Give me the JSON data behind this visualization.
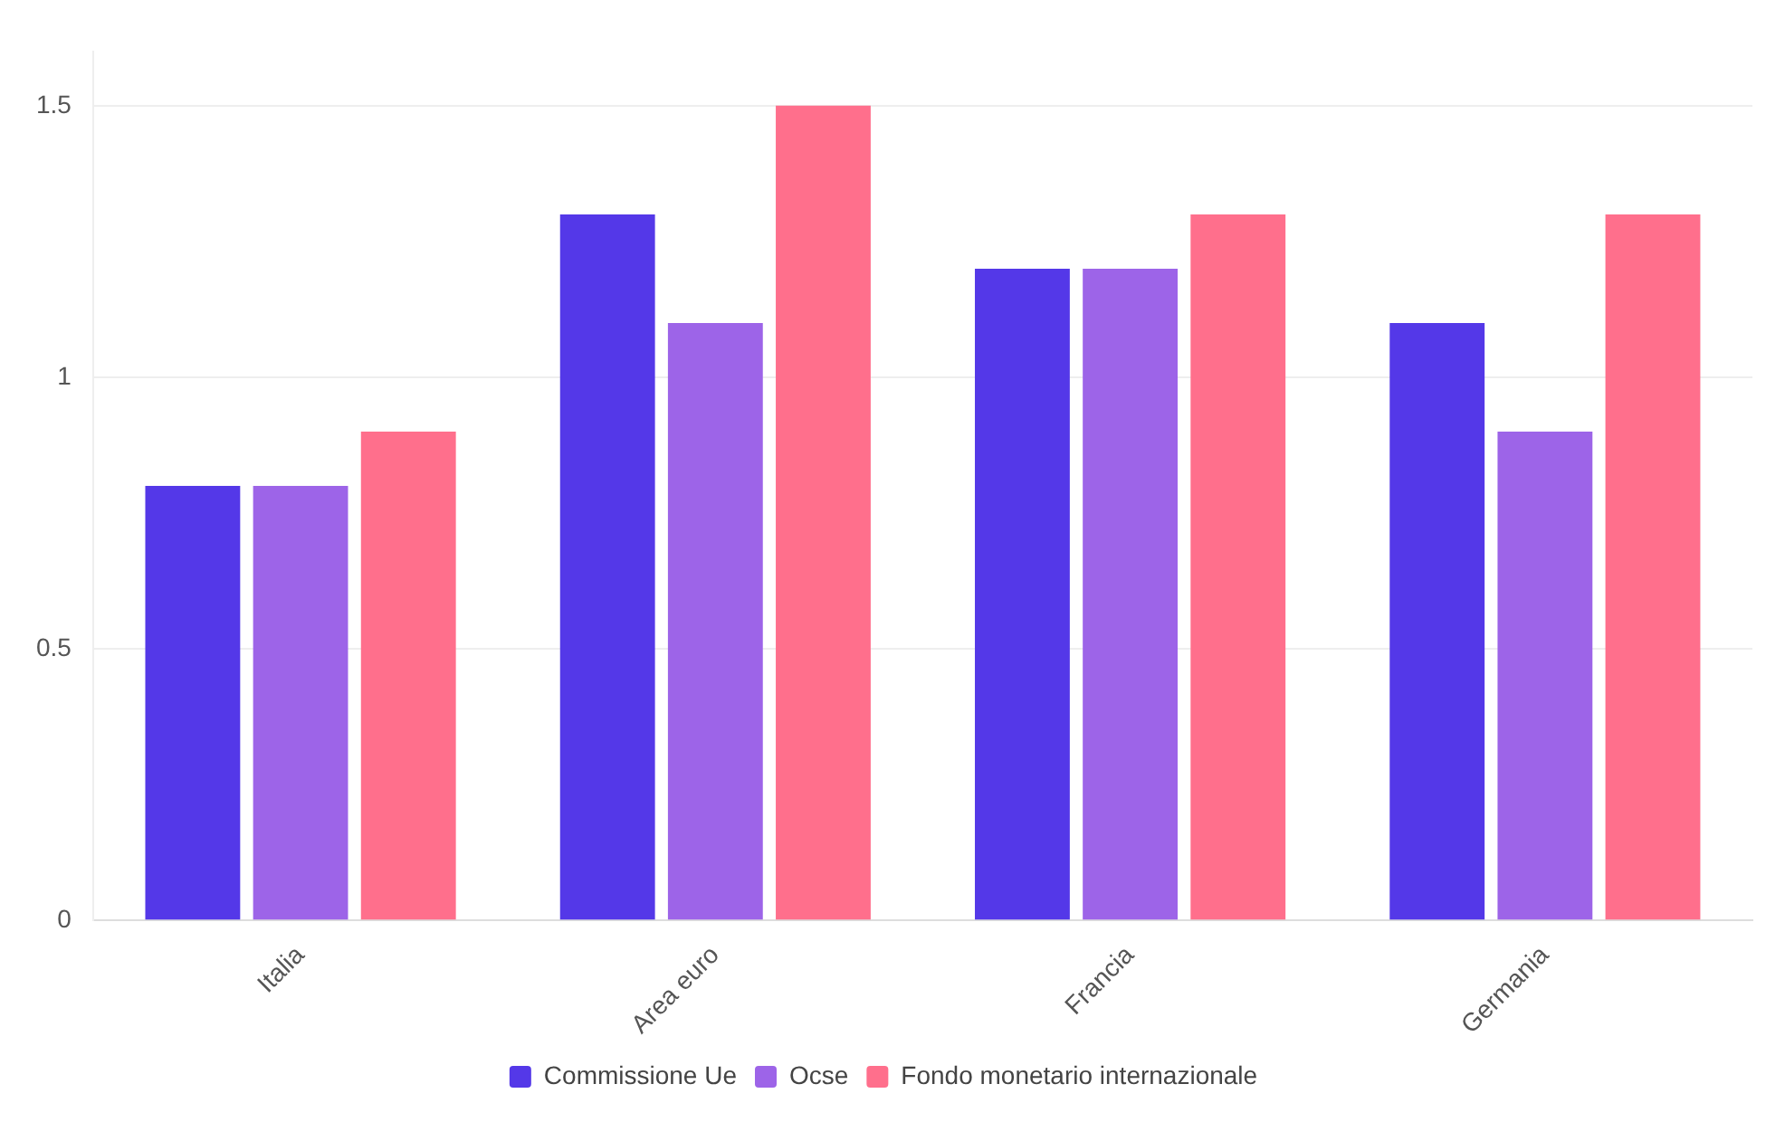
{
  "chart_data": {
    "type": "bar",
    "categories": [
      "Italia",
      "Area euro",
      "Francia",
      "Germania"
    ],
    "series": [
      {
        "name": "Commissione Ue",
        "color": "#5438e8",
        "values": [
          0.8,
          1.3,
          1.2,
          1.1
        ]
      },
      {
        "name": "Ocse",
        "color": "#9d64e8",
        "values": [
          0.8,
          1.1,
          1.2,
          0.9
        ]
      },
      {
        "name": "Fondo monetario internazionale",
        "color": "#ff6f8c",
        "values": [
          0.9,
          1.5,
          1.3,
          1.3
        ]
      }
    ],
    "ylim": [
      0,
      1.6
    ],
    "yticks": [
      0,
      0.5,
      1,
      1.5
    ],
    "grid": "y",
    "legend": "bottom"
  }
}
